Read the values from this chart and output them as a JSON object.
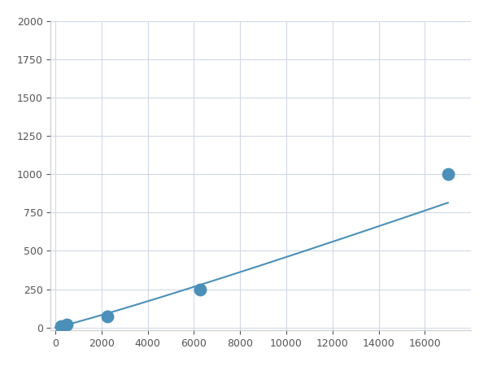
{
  "x": [
    0,
    250,
    500,
    750,
    2250,
    6250,
    17000
  ],
  "y": [
    0,
    10,
    20,
    25,
    75,
    250,
    1000
  ],
  "marker_x": [
    250,
    500,
    2250,
    6250,
    17000
  ],
  "marker_y": [
    10,
    20,
    75,
    250,
    1000
  ],
  "line_color": "#4a90b8",
  "marker_color": "#4a90b8",
  "marker_size": 6,
  "line_width": 1.5,
  "xlim": [
    -200,
    18000
  ],
  "ylim": [
    -20,
    2000
  ],
  "xticks": [
    0,
    2000,
    4000,
    6000,
    8000,
    10000,
    12000,
    14000,
    16000
  ],
  "yticks": [
    0,
    250,
    500,
    750,
    1000,
    1250,
    1500,
    1750,
    2000
  ],
  "grid_color": "#d0d8e8",
  "background_color": "#ffffff",
  "spine_color": "#cccccc"
}
